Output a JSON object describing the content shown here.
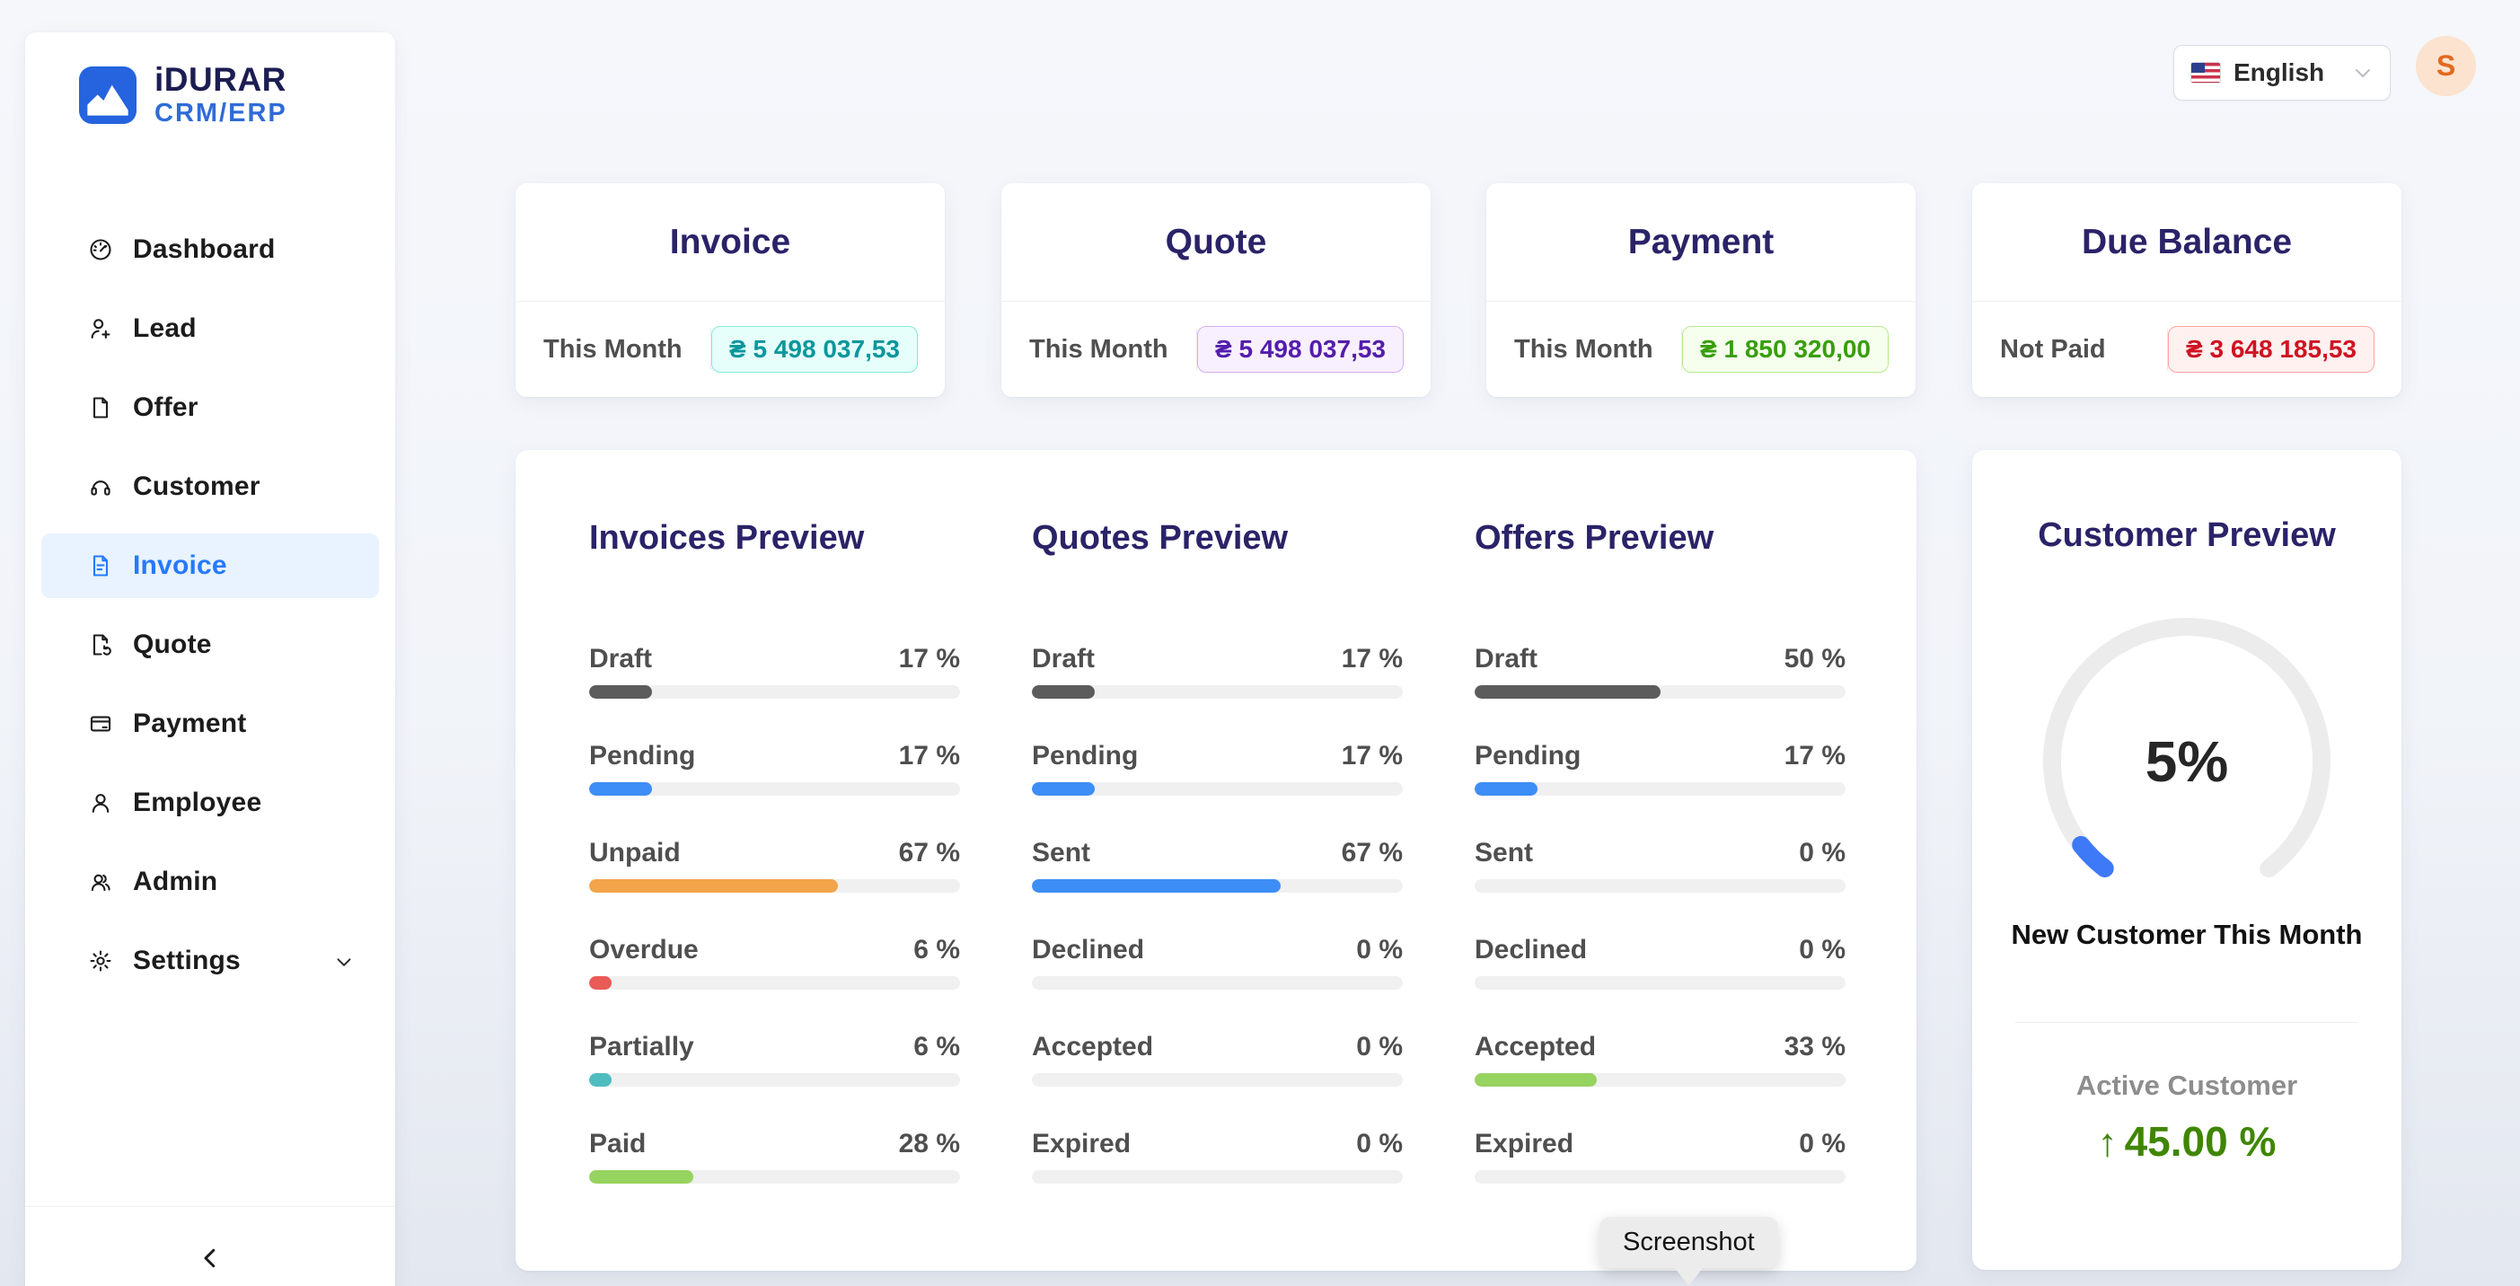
{
  "brand": {
    "name": "iDURAR",
    "sub": "CRM/ERP",
    "logo_color": "#2563df"
  },
  "header": {
    "language": {
      "label": "English",
      "flag": "us-flag"
    },
    "avatar": {
      "initial": "S",
      "bg": "#fbe3d0",
      "color": "#e2691f"
    }
  },
  "sidebar": {
    "items": [
      {
        "label": "Dashboard",
        "icon": "dashboard-icon",
        "active": false
      },
      {
        "label": "Lead",
        "icon": "user-add-icon",
        "active": false
      },
      {
        "label": "Offer",
        "icon": "file-icon",
        "active": false
      },
      {
        "label": "Customer",
        "icon": "headset-icon",
        "active": false
      },
      {
        "label": "Invoice",
        "icon": "file-text-icon",
        "active": true
      },
      {
        "label": "Quote",
        "icon": "file-sync-icon",
        "active": false
      },
      {
        "label": "Payment",
        "icon": "credit-card-icon",
        "active": false
      },
      {
        "label": "Employee",
        "icon": "user-icon",
        "active": false
      },
      {
        "label": "Admin",
        "icon": "team-icon",
        "active": false
      },
      {
        "label": "Settings",
        "icon": "gear-icon",
        "active": false,
        "has_submenu": true
      }
    ],
    "active_color": "#2679ff",
    "active_bg": "#e8f3ff"
  },
  "summary_cards": [
    {
      "title": "Invoice",
      "period_label": "This Month",
      "value": "₴ 5 498 037,53",
      "badge": {
        "text": "#08979c",
        "bg": "#e6fffb",
        "border": "#87e8de"
      }
    },
    {
      "title": "Quote",
      "period_label": "This Month",
      "value": "₴ 5 498 037,53",
      "badge": {
        "text": "#531dab",
        "bg": "#f9f0ff",
        "border": "#d3adf7"
      }
    },
    {
      "title": "Payment",
      "period_label": "This Month",
      "value": "₴ 1 850 320,00",
      "badge": {
        "text": "#389e0d",
        "bg": "#f6ffed",
        "border": "#b7eb8f"
      }
    },
    {
      "title": "Due Balance",
      "period_label": "Not Paid",
      "value": "₴ 3 648 185,53",
      "badge": {
        "text": "#cf1322",
        "bg": "#fff1f0",
        "border": "#ffa39e"
      }
    }
  ],
  "previews": [
    {
      "title": "Invoices Preview",
      "rows": [
        {
          "label": "Draft",
          "percent": 17,
          "color": "#5c5c5c"
        },
        {
          "label": "Pending",
          "percent": 17,
          "color": "#3e8ef7"
        },
        {
          "label": "Unpaid",
          "percent": 67,
          "color": "#f2a54a"
        },
        {
          "label": "Overdue",
          "percent": 6,
          "color": "#ea5a56"
        },
        {
          "label": "Partially",
          "percent": 6,
          "color": "#4fbdc0"
        },
        {
          "label": "Paid",
          "percent": 28,
          "color": "#97d35f"
        }
      ]
    },
    {
      "title": "Quotes Preview",
      "rows": [
        {
          "label": "Draft",
          "percent": 17,
          "color": "#5c5c5c"
        },
        {
          "label": "Pending",
          "percent": 17,
          "color": "#3e8ef7"
        },
        {
          "label": "Sent",
          "percent": 67,
          "color": "#3e8ef7"
        },
        {
          "label": "Declined",
          "percent": 0,
          "color": null
        },
        {
          "label": "Accepted",
          "percent": 0,
          "color": null
        },
        {
          "label": "Expired",
          "percent": 0,
          "color": null
        }
      ]
    },
    {
      "title": "Offers Preview",
      "rows": [
        {
          "label": "Draft",
          "percent": 50,
          "color": "#5c5c5c"
        },
        {
          "label": "Pending",
          "percent": 17,
          "color": "#3e8ef7"
        },
        {
          "label": "Sent",
          "percent": 0,
          "color": null
        },
        {
          "label": "Declined",
          "percent": 0,
          "color": null
        },
        {
          "label": "Accepted",
          "percent": 33,
          "color": "#97d35f"
        },
        {
          "label": "Expired",
          "percent": 0,
          "color": null
        }
      ]
    }
  ],
  "customer_preview": {
    "title": "Customer Preview",
    "gauge_percent": 5,
    "gauge_percent_label": "5%",
    "gauge_color": "#3e79f7",
    "gauge_track": "#ececec",
    "caption": "New Customer This Month",
    "active_label": "Active Customer",
    "active_value": "45.00 %",
    "trend": "up",
    "trend_color": "#3f8600"
  },
  "tooltip": {
    "text": "Screenshot"
  }
}
